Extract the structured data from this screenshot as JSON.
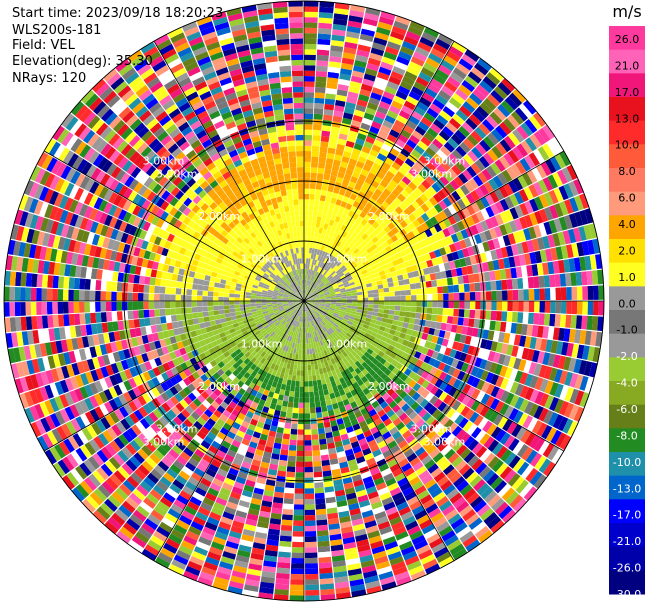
{
  "header": {
    "start_time": "Start time: 2023/09/18 18:20:23",
    "instrument": "WLS200s-181",
    "field": "Field: VEL",
    "elevation": "Elevation(deg): 35.30",
    "nrays": "NRays: 120"
  },
  "chart_data": {
    "type": "heatmap",
    "projection": "polar-ppi",
    "field": "VEL",
    "n_rays": 120,
    "range_rings_km": [
      1.0,
      2.0,
      3.0
    ],
    "ring_labels": [
      "1.00km",
      "2.00km",
      "3.00km"
    ],
    "outer_label": "3.00km",
    "colorbar": {
      "unit": "m/s",
      "min": -30.0,
      "max": 30.0,
      "tick_labels": [
        "26.0",
        "21.0",
        "17.0",
        "13.0",
        "10.0",
        "8.0",
        "6.0",
        "4.0",
        "2.0",
        "1.0",
        "0.0",
        "-1.0",
        "-2.0",
        "-4.0",
        "-6.0",
        "-8.0",
        "-10.0",
        "-13.0",
        "-17.0",
        "-21.0",
        "-26.0",
        "-30.0"
      ],
      "bin_colors": [
        "#ff3a9e",
        "#ff63b8",
        "#f0167a",
        "#e8121e",
        "#ff2a2a",
        "#ff5a3a",
        "#ff7a60",
        "#ff9a7a",
        "#ffa500",
        "#ffe000",
        "#ffff22",
        "#999999",
        "#777777",
        "#999999",
        "#99cc33",
        "#88aa22",
        "#667f18",
        "#228b22",
        "#1e90aa",
        "#0066cc",
        "#0000ff",
        "#0000cc",
        "#0000aa",
        "#000080"
      ]
    }
  }
}
